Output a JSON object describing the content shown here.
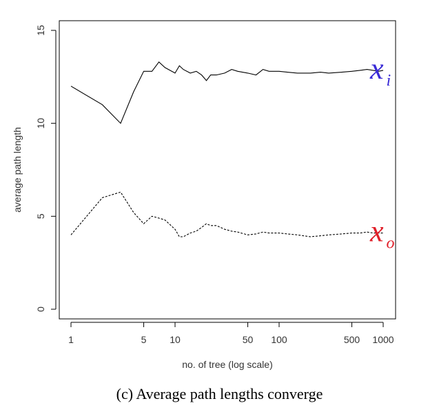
{
  "caption": "(c) Average path lengths converge",
  "chart_data": {
    "type": "line",
    "xlabel": "no. of tree (log scale)",
    "ylabel": "average path length",
    "x_scale": "log",
    "xlim": [
      1,
      1000
    ],
    "ylim": [
      0,
      15
    ],
    "x_ticks": [
      1,
      5,
      10,
      50,
      100,
      500,
      1000
    ],
    "x_tick_labels": [
      "1",
      "5",
      "10",
      "50",
      "100",
      "500",
      "1000"
    ],
    "y_ticks": [
      0,
      5,
      10,
      15
    ],
    "y_tick_labels": [
      "0",
      "5",
      "10",
      "15"
    ],
    "grid": false,
    "series": [
      {
        "name": "x_i",
        "label_main": "x",
        "label_sub": "i",
        "label_color": "#3a2bd6",
        "line_style": "solid",
        "x": [
          1,
          2,
          3,
          4,
          5,
          6,
          7,
          8,
          10,
          11,
          12,
          14,
          16,
          18,
          20,
          22,
          25,
          30,
          35,
          40,
          50,
          60,
          70,
          80,
          100,
          120,
          150,
          200,
          250,
          300,
          400,
          500,
          600,
          700,
          800,
          900,
          1000
        ],
        "y": [
          12.0,
          11.0,
          10.0,
          11.7,
          12.8,
          12.8,
          13.3,
          13.0,
          12.7,
          13.1,
          12.9,
          12.7,
          12.8,
          12.6,
          12.3,
          12.6,
          12.6,
          12.7,
          12.9,
          12.8,
          12.7,
          12.6,
          12.9,
          12.8,
          12.8,
          12.75,
          12.7,
          12.7,
          12.75,
          12.7,
          12.75,
          12.8,
          12.85,
          12.9,
          12.85,
          12.8,
          12.85
        ]
      },
      {
        "name": "x_o",
        "label_main": "x",
        "label_sub": "o",
        "label_color": "#e0202a",
        "line_style": "dashed",
        "x": [
          1,
          2,
          3,
          4,
          5,
          6,
          7,
          8,
          10,
          11,
          12,
          14,
          16,
          18,
          20,
          22,
          25,
          30,
          35,
          40,
          50,
          60,
          70,
          80,
          100,
          120,
          150,
          200,
          250,
          300,
          400,
          500,
          600,
          700,
          800,
          900,
          1000
        ],
        "y": [
          4.0,
          6.0,
          6.3,
          5.2,
          4.6,
          5.0,
          4.9,
          4.8,
          4.3,
          3.9,
          3.9,
          4.1,
          4.2,
          4.4,
          4.6,
          4.5,
          4.5,
          4.3,
          4.2,
          4.15,
          4.0,
          4.05,
          4.15,
          4.1,
          4.1,
          4.05,
          4.0,
          3.9,
          3.95,
          4.0,
          4.05,
          4.1,
          4.1,
          4.15,
          4.1,
          4.1,
          4.1
        ]
      }
    ]
  }
}
